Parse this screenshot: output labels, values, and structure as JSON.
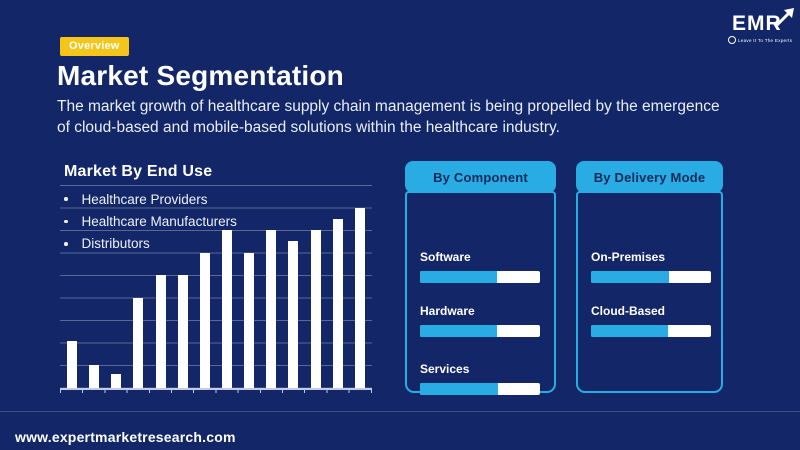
{
  "page": {
    "bg_color": "#122668",
    "accent_cyan": "#29ACE4",
    "badge_yellow": "#F6C51A",
    "bar_white": "#FFFFFF"
  },
  "header": {
    "badge": "Overview",
    "title": "Market Segmentation",
    "subtitle_lines": [
      "The market growth of healthcare supply chain management is being propelled by the emergence",
      "of cloud-based and mobile-based solutions within the healthcare industry."
    ]
  },
  "logo": {
    "text": "EMR",
    "tagline": "Leave It To The Experts",
    "arrow_icon": "up-right-arrow"
  },
  "end_use": {
    "title": "Market By End Use",
    "items": [
      "Healthcare Providers",
      "Healthcare Manufacturers",
      "Distributors"
    ]
  },
  "chart_data": {
    "type": "bar",
    "title": "Market By End Use",
    "categories": [
      "",
      "",
      "",
      "",
      "",
      "",
      "",
      "",
      "",
      "",
      "",
      "",
      "",
      ""
    ],
    "values": [
      2.1,
      1,
      0.6,
      4,
      5,
      5,
      6,
      7,
      6,
      7,
      6.5,
      7,
      7.5,
      8
    ],
    "xlabel": "",
    "ylabel": "",
    "ylim": [
      0,
      9
    ],
    "grid": true,
    "legend_position": "none",
    "tick_labels": "none",
    "bar_color": "#FFFFFF"
  },
  "panels": [
    {
      "title": "By Component",
      "rows": [
        {
          "label": "Software",
          "fill_pct": 64
        },
        {
          "label": "Hardware",
          "fill_pct": 64
        },
        {
          "label": "Services",
          "fill_pct": 65
        }
      ]
    },
    {
      "title": "By Delivery Mode",
      "rows": [
        {
          "label": "On-Premises",
          "fill_pct": 65
        },
        {
          "label": "Cloud-Based",
          "fill_pct": 64
        }
      ]
    }
  ],
  "footer": {
    "url": "www.expertmarketresearch.com"
  }
}
